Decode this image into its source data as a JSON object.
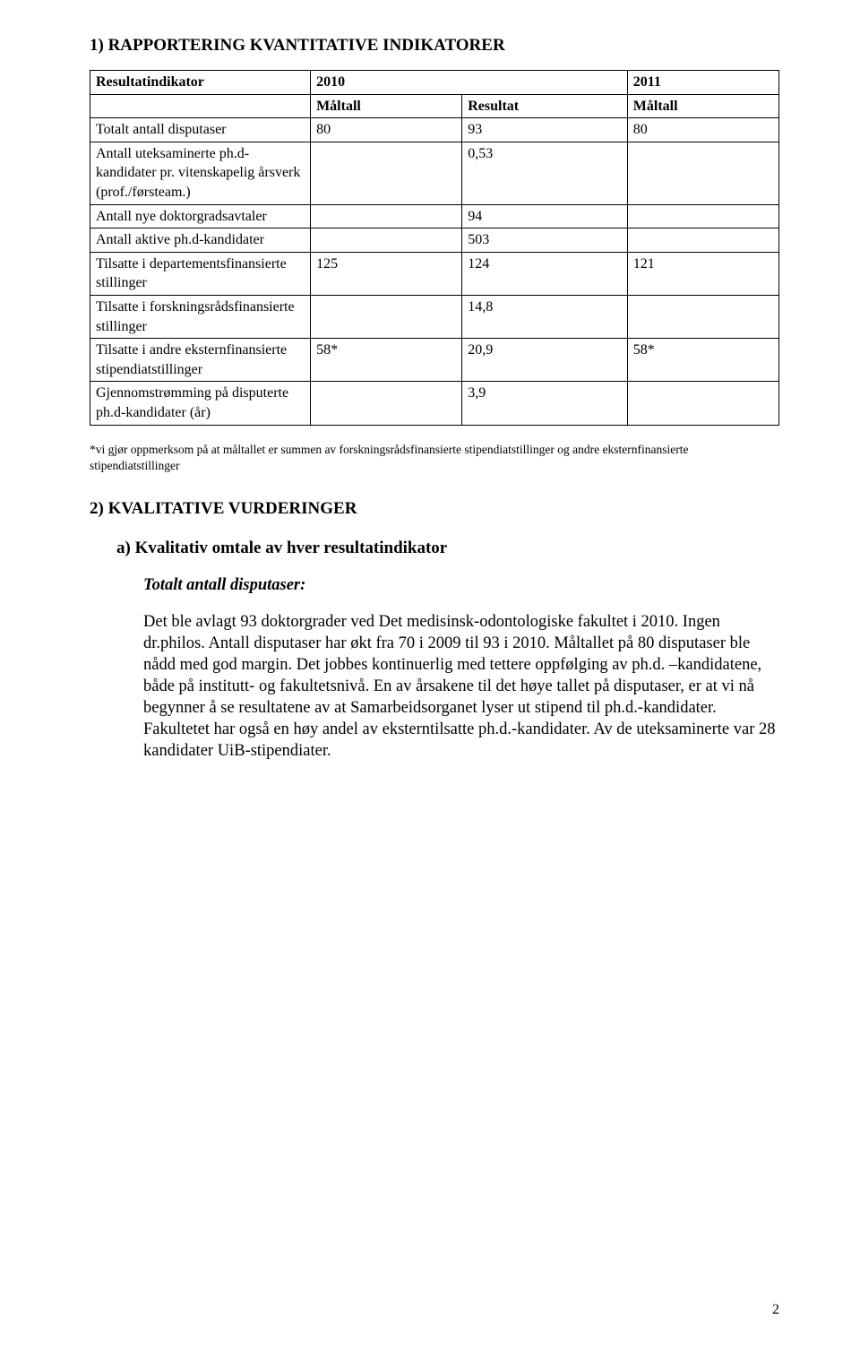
{
  "section1": {
    "title": "1) RAPPORTERING KVANTITATIVE INDIKATORER",
    "table": {
      "head": {
        "indicator": "Resultatindikator",
        "y2010": "2010",
        "y2011": "2011",
        "maltall1": "Måltall",
        "resultat": "Resultat",
        "maltall2": "Måltall"
      },
      "rows": [
        {
          "label": "Totalt antall disputaser",
          "c1": "80",
          "c2": "93",
          "c3": "80"
        },
        {
          "label": "Antall uteksaminerte ph.d-kandidater pr. vitenskapelig årsverk (prof./førsteam.)",
          "c1": "",
          "c2": "0,53",
          "c3": ""
        },
        {
          "label": "Antall nye doktorgradsavtaler",
          "c1": "",
          "c2": "94",
          "c3": ""
        },
        {
          "label": "Antall aktive ph.d-kandidater",
          "c1": "",
          "c2": "503",
          "c3": ""
        },
        {
          "label": "Tilsatte i departementsfinansierte stillinger",
          "c1": "125",
          "c2": "124",
          "c3": "121"
        },
        {
          "label": "Tilsatte i forskningsrådsfinansierte stillinger",
          "c1": "",
          "c2": "14,8",
          "c3": ""
        },
        {
          "label": "Tilsatte i andre eksternfinansierte stipendiatstillinger",
          "c1": "58*",
          "c2": "20,9",
          "c3": "58*"
        },
        {
          "label": "Gjennomstrømming på disputerte ph.d-kandidater (år)",
          "c1": "",
          "c2": "3,9",
          "c3": ""
        }
      ]
    },
    "footnote": "*vi gjør oppmerksom på at måltallet er summen av forskningsrådsfinansierte stipendiatstillinger og andre eksternfinansierte stipendiatstillinger"
  },
  "section2": {
    "title": "2) KVALITATIVE VURDERINGER",
    "item_a": "a)  Kvalitativ omtale av hver resultatindikator",
    "sub_italic": "Totalt antall disputaser:",
    "paragraph": "Det ble avlagt 93 doktorgrader ved Det medisinsk-odontologiske fakultet i 2010. Ingen dr.philos. Antall disputaser har økt fra 70 i 2009 til 93 i 2010. Måltallet på 80 disputaser ble nådd med god margin. Det jobbes kontinuerlig med tettere oppfølging av ph.d. –kandidatene, både på institutt- og fakultetsnivå. En av årsakene til det høye tallet på disputaser, er at vi nå begynner å se resultatene av at Samarbeidsorganet lyser ut stipend til ph.d.-kandidater. Fakultetet har også en høy andel av eksterntilsatte ph.d.-kandidater. Av de uteksaminerte var 28 kandidater UiB-stipendiater."
  },
  "page_number": "2"
}
